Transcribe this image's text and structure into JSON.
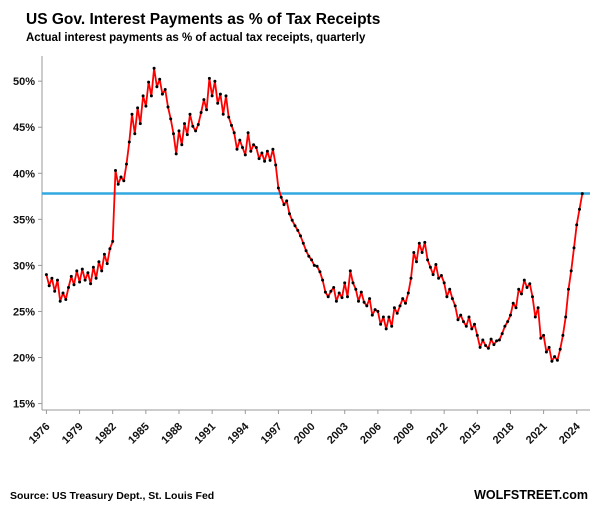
{
  "header": {
    "title": "US Gov. Interest Payments as % of Tax Receipts",
    "subtitle": "Actual interest payments as % of actual tax receipts, quarterly"
  },
  "footer": {
    "source": "Source: US Treasury Dept., St. Louis Fed",
    "watermark": "WOLFSTREET.com"
  },
  "chart_data": {
    "type": "line",
    "title": "US Gov. Interest Payments as % of Tax Receipts",
    "subtitle": "Actual interest payments as % of actual tax receipts, quarterly",
    "series_name": "Interest payments as % of tax receipts, quarterly",
    "xlabel": "",
    "ylabel": "",
    "ylim": [
      15,
      50
    ],
    "yticks": [
      15,
      20,
      25,
      30,
      35,
      40,
      45,
      50
    ],
    "ytick_suffix": "%",
    "xticks": [
      1976,
      1979,
      1982,
      1985,
      1988,
      1991,
      1994,
      1997,
      2000,
      2003,
      2006,
      2009,
      2012,
      2015,
      2018,
      2021,
      2024
    ],
    "grid": false,
    "legend": false,
    "line_color": "#ff0000",
    "marker_color": "#000000",
    "reference_line": {
      "value": 37.8,
      "color": "#31a8e0"
    },
    "x_start": 1976,
    "x_step": 0.25,
    "values": [
      29.0,
      27.8,
      28.6,
      27.2,
      28.4,
      26.1,
      27.0,
      26.3,
      27.6,
      28.8,
      27.9,
      29.4,
      28.2,
      29.6,
      28.4,
      29.2,
      28.0,
      29.8,
      28.6,
      30.4,
      29.4,
      31.2,
      30.2,
      31.8,
      32.6,
      40.3,
      38.8,
      39.6,
      39.2,
      41.0,
      43.4,
      46.4,
      44.3,
      47.1,
      45.4,
      48.4,
      47.3,
      49.9,
      48.4,
      51.4,
      49.4,
      50.2,
      48.6,
      49.1,
      47.2,
      45.9,
      44.3,
      42.1,
      44.6,
      43.1,
      45.4,
      44.2,
      46.4,
      45.1,
      44.6,
      45.3,
      46.6,
      48.0,
      46.9,
      50.3,
      48.4,
      50.0,
      47.6,
      48.6,
      46.4,
      48.4,
      46.1,
      45.2,
      44.4,
      42.6,
      43.6,
      42.8,
      42.0,
      44.4,
      42.4,
      43.1,
      42.8,
      41.6,
      42.2,
      41.3,
      42.4,
      41.4,
      42.6,
      40.9,
      38.4,
      37.4,
      36.6,
      37.0,
      35.6,
      34.9,
      34.3,
      33.8,
      33.2,
      32.4,
      31.6,
      31.0,
      30.6,
      30.0,
      29.9,
      29.3,
      28.4,
      27.1,
      26.6,
      27.2,
      27.6,
      26.1,
      27.0,
      26.5,
      28.1,
      26.6,
      29.4,
      28.1,
      27.4,
      26.1,
      27.1,
      26.0,
      25.6,
      26.4,
      24.6,
      25.2,
      25.0,
      23.6,
      24.4,
      23.1,
      24.4,
      23.4,
      25.4,
      24.8,
      25.6,
      26.4,
      25.9,
      27.0,
      28.6,
      31.4,
      30.4,
      32.4,
      31.4,
      32.5,
      30.6,
      29.8,
      29.0,
      30.1,
      28.6,
      28.9,
      28.1,
      26.6,
      27.4,
      26.4,
      25.6,
      24.1,
      24.6,
      23.9,
      23.4,
      24.4,
      23.1,
      23.6,
      22.4,
      21.1,
      21.9,
      21.3,
      21.0,
      22.0,
      21.4,
      21.8,
      21.9,
      22.6,
      23.4,
      23.9,
      24.6,
      25.9,
      25.4,
      27.4,
      26.9,
      28.4,
      27.6,
      28.0,
      26.6,
      24.4,
      25.4,
      22.1,
      22.4,
      20.6,
      21.1,
      19.6,
      20.1,
      19.7,
      20.9,
      22.4,
      24.4,
      27.4,
      29.4,
      31.9,
      34.4,
      36.1,
      37.8
    ]
  }
}
